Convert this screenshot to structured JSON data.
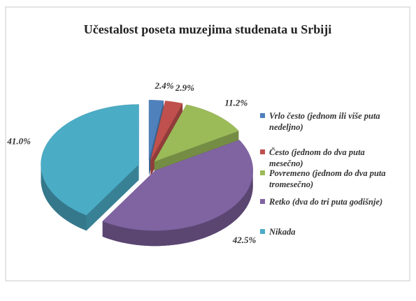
{
  "chart_data": {
    "type": "pie",
    "title": "Učestalost poseta muzejima studenata u Srbiji",
    "categories": [
      "Vrlo često (jednom ili više puta nedeljno)",
      "Često (jednom do dva puta mesečno)",
      "Povremeno (jednom do dva puta tromesečno)",
      "Retko (dva do tri puta godišnje)",
      "Nikada"
    ],
    "values": [
      2.4,
      2.9,
      11.2,
      42.5,
      41.0
    ],
    "value_labels": [
      "2.4%",
      "2.9%",
      "11.2%",
      "42.5%",
      "41.0%"
    ],
    "colors": [
      "#4f81bd",
      "#c0504d",
      "#9bbb59",
      "#8064a2",
      "#4bacc6"
    ],
    "legend": "right"
  }
}
